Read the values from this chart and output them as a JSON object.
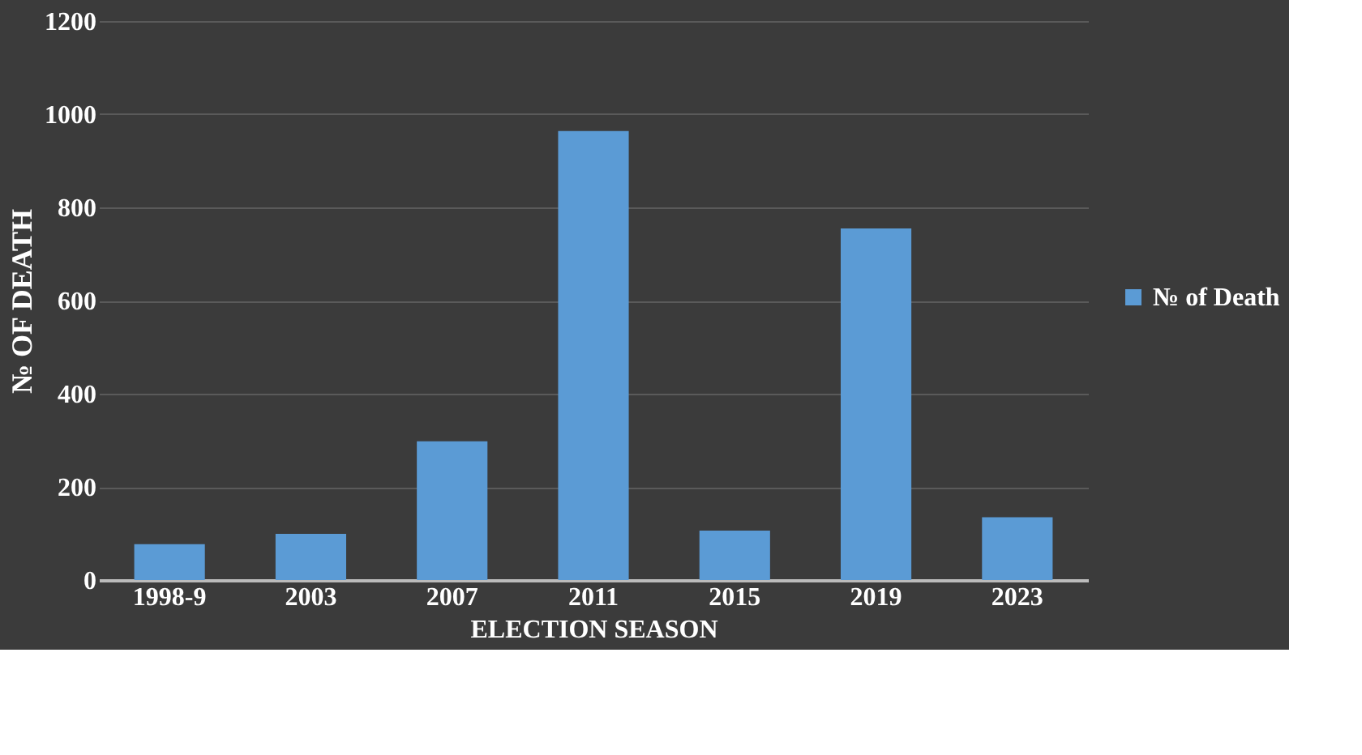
{
  "chart_data": {
    "type": "bar",
    "xlabel": "ELECTION SEASON",
    "ylabel": "№ OF DEATH",
    "categories": [
      "1998-9",
      "2003",
      "2007",
      "2011",
      "2015",
      "2019",
      "2023"
    ],
    "series": [
      {
        "name": "№ of Death",
        "color": "#5b9bd5",
        "values": [
          77,
          99,
          298,
          964,
          106,
          755,
          135
        ]
      }
    ],
    "ylim": [
      0,
      1200
    ],
    "yticks": [
      0,
      200,
      400,
      600,
      800,
      1000,
      1200
    ],
    "grid": "y",
    "legend": "right"
  }
}
